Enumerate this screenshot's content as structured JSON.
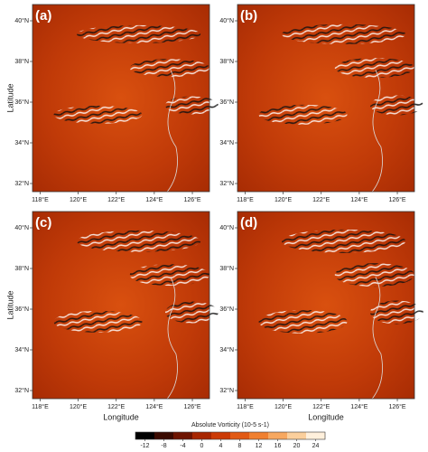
{
  "panels": [
    {
      "label": "(a)"
    },
    {
      "label": "(b)"
    },
    {
      "label": "(c)"
    },
    {
      "label": "(d)"
    }
  ],
  "y_label": "Latitude",
  "x_label": "Longitude",
  "ylim": [
    31.6,
    40.8
  ],
  "xlim": [
    117.6,
    126.9
  ],
  "yticks": [
    {
      "value": 40,
      "label": "40°N"
    },
    {
      "value": 38,
      "label": "38°N"
    },
    {
      "value": 36,
      "label": "36°N"
    },
    {
      "value": 34,
      "label": "34°N"
    },
    {
      "value": 32,
      "label": "32°N"
    }
  ],
  "xticks": [
    {
      "value": 118,
      "label": "118°E"
    },
    {
      "value": 120,
      "label": "120°E"
    },
    {
      "value": 122,
      "label": "122°E"
    },
    {
      "value": 124,
      "label": "124°E"
    },
    {
      "value": 126,
      "label": "126°E"
    }
  ],
  "colorbar": {
    "title": "Absolute Vorticity (10-5 s-1)",
    "clim": [
      -14,
      26
    ],
    "ticks": [
      -12,
      -8,
      -4,
      0,
      4,
      8,
      12,
      16,
      20,
      24
    ],
    "colors": [
      "#000000",
      "#3a0a00",
      "#6e1400",
      "#a82600",
      "#cc3a06",
      "#e25a14",
      "#f08030",
      "#f7a860",
      "#fbcf9c",
      "#fff0dc"
    ]
  }
}
